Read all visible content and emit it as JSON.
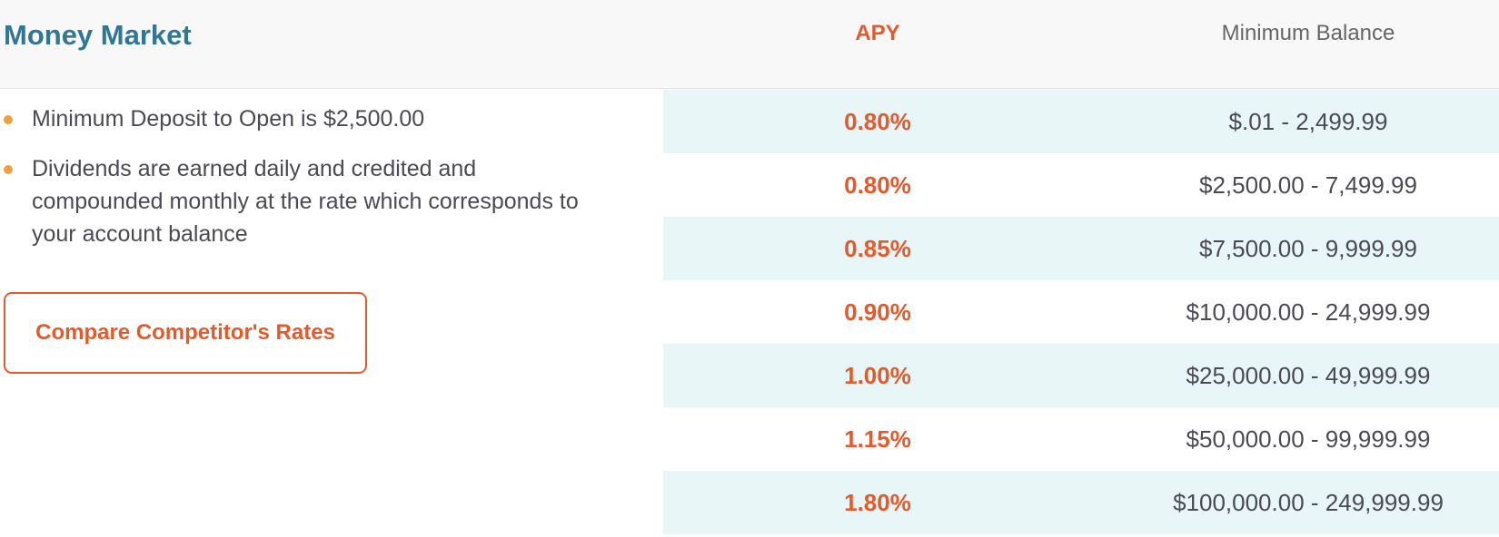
{
  "header": {
    "title": "Money Market",
    "apy_label": "APY",
    "balance_label": "Minimum Balance"
  },
  "bullets": [
    "Minimum Deposit to Open is $2,500.00",
    "Dividends are earned daily and credited and compounded monthly at the rate which corresponds to your account balance"
  ],
  "compare_button": {
    "label": "Compare Competitor's Rates"
  },
  "rates": [
    {
      "apy": "0.80%",
      "balance": "$.01 - 2,499.99"
    },
    {
      "apy": "0.80%",
      "balance": "$2,500.00 - 7,499.99"
    },
    {
      "apy": "0.85%",
      "balance": "$7,500.00 - 9,999.99"
    },
    {
      "apy": "0.90%",
      "balance": "$10,000.00 - 24,999.99"
    },
    {
      "apy": "1.00%",
      "balance": "$25,000.00 - 49,999.99"
    },
    {
      "apy": "1.15%",
      "balance": "$50,000.00 - 99,999.99"
    },
    {
      "apy": "1.80%",
      "balance": "$100,000.00 - 249,999.99"
    }
  ],
  "colors": {
    "title": "#2f7697",
    "accent": "#e35b2c",
    "bullet_dot": "#f0a13e",
    "row_shade": "#e8f6f8"
  }
}
